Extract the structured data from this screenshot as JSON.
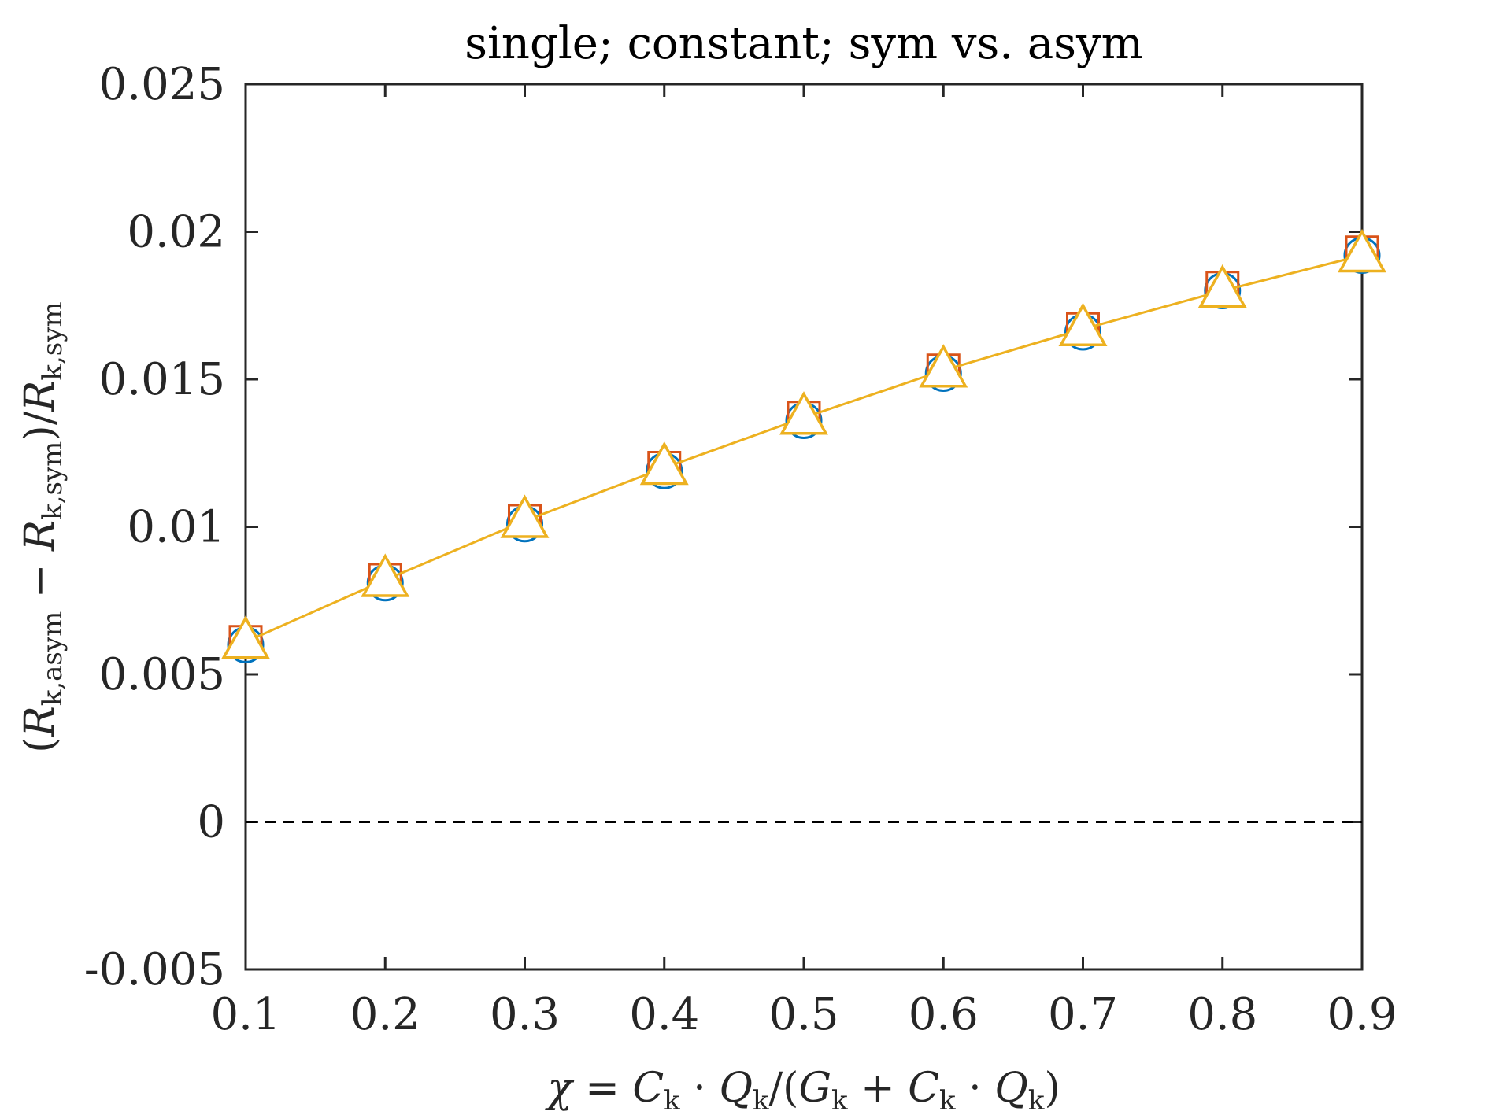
{
  "chart_data": {
    "type": "line",
    "title": "single; constant; sym vs. asym",
    "xlabel": "χ = Cₖ · Qₖ/(Gₖ + Cₖ · Qₖ)",
    "ylabel": "(Rₖ,asym − Rₖ,sym)/Rₖ,sym",
    "xlim": [
      0.1,
      0.9
    ],
    "ylim": [
      -0.005,
      0.025
    ],
    "xticks": [
      "0.1",
      "0.2",
      "0.3",
      "0.4",
      "0.5",
      "0.6",
      "0.7",
      "0.8",
      "0.9"
    ],
    "yticks": [
      "-0.005",
      "0",
      "0.005",
      "0.01",
      "0.015",
      "0.02",
      "0.025"
    ],
    "grid": false,
    "x": [
      0.1,
      0.2,
      0.3,
      0.4,
      0.5,
      0.6,
      0.7,
      0.8,
      0.9
    ],
    "series": [
      {
        "marker": "circle",
        "color": "#0072BD",
        "line": false,
        "values": [
          0.006,
          0.0081,
          0.0101,
          0.0119,
          0.0136,
          0.0152,
          0.0166,
          0.018,
          0.0192
        ]
      },
      {
        "marker": "square",
        "color": "#D95319",
        "line": false,
        "values": [
          0.0061,
          0.0082,
          0.0102,
          0.012,
          0.0137,
          0.0153,
          0.0167,
          0.0181,
          0.0193
        ]
      },
      {
        "marker": "triangle",
        "color": "#EDB120",
        "line": true,
        "values": [
          0.0061,
          0.0082,
          0.0102,
          0.012,
          0.0137,
          0.0153,
          0.0167,
          0.018,
          0.0192
        ]
      }
    ],
    "reference_line": {
      "y": 0,
      "style": "dashed",
      "color": "#000000"
    }
  }
}
